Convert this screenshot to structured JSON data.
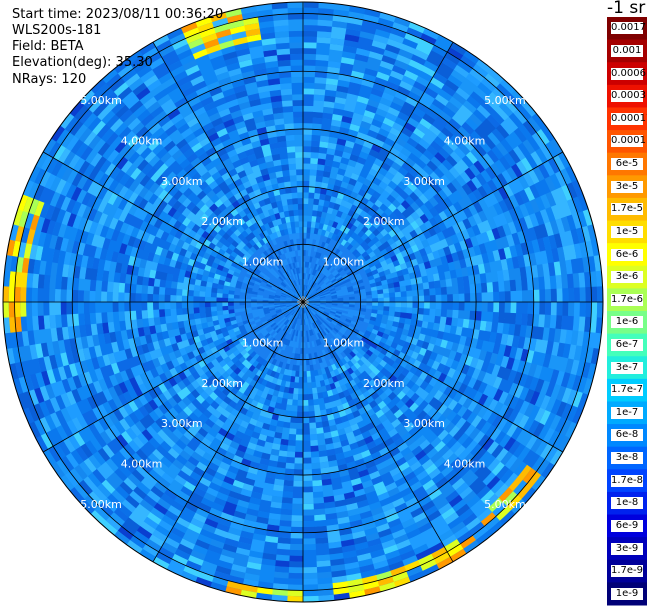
{
  "header": {
    "start_time": "Start time: 2023/08/11 00:36:20",
    "instrument": "WLS200s-181",
    "field": "Field: BETA",
    "elevation": "Elevation(deg): 35.30",
    "nrays": "NRays: 120"
  },
  "colorbar": {
    "unit": "-1 sr",
    "labels": [
      "0.0017",
      "0.001",
      "0.0006",
      "0.0003",
      "0.00017",
      "0.0001",
      "6e-5",
      "3e-5",
      "1.7e-5",
      "1e-5",
      "6e-6",
      "3e-6",
      "1.7e-6",
      "1e-6",
      "6e-7",
      "3e-7",
      "1.7e-7",
      "1e-7",
      "6e-8",
      "3e-8",
      "1.7e-8",
      "1e-8",
      "6e-9",
      "3e-9",
      "1.7e-9",
      "1e-9"
    ],
    "colors": [
      "#7f0000",
      "#a50000",
      "#cc0000",
      "#ee1100",
      "#ff3300",
      "#ff5500",
      "#ff7700",
      "#ff9900",
      "#ffbb00",
      "#ffdd00",
      "#ffff00",
      "#ddff22",
      "#aaff55",
      "#77ff88",
      "#44ffbb",
      "#22eedd",
      "#00ccff",
      "#00aaff",
      "#0088ff",
      "#0066ff",
      "#0044ff",
      "#0022ee",
      "#0000dd",
      "#0000bb",
      "#000099",
      "#000077"
    ]
  },
  "chart_data": {
    "type": "heatmap",
    "title": "",
    "projection": "polar (PPI scan)",
    "field": "BETA",
    "elevation_deg": 35.3,
    "n_rays": 120,
    "range_ring_labels": [
      "1.00km",
      "2.00km",
      "3.00km",
      "4.00km",
      "5.00km"
    ],
    "range_rings_km": [
      1,
      2,
      3,
      4,
      5
    ],
    "max_range_km": 5.2,
    "azimuth_spokes_deg": [
      0,
      30,
      60,
      90,
      120,
      150,
      180,
      210,
      240,
      270,
      300,
      330
    ],
    "background_beta_sr-1": 1.7e-08,
    "high_beta_regions": [
      {
        "azimuth_deg": [
          335,
          350
        ],
        "range_km": [
          4.6,
          5.2
        ],
        "beta_sr-1": 1e-05
      },
      {
        "azimuth_deg": [
          265,
          290
        ],
        "range_km": [
          4.8,
          5.2
        ],
        "beta_sr-1": 1e-05
      },
      {
        "azimuth_deg": [
          145,
          175
        ],
        "range_km": [
          4.9,
          5.2
        ],
        "beta_sr-1": 6e-06
      },
      {
        "azimuth_deg": [
          180,
          195
        ],
        "range_km": [
          5.0,
          5.2
        ],
        "beta_sr-1": 6e-06
      },
      {
        "azimuth_deg": [
          125,
          140
        ],
        "range_km": [
          4.8,
          5.1
        ],
        "beta_sr-1": 3e-06
      }
    ]
  }
}
